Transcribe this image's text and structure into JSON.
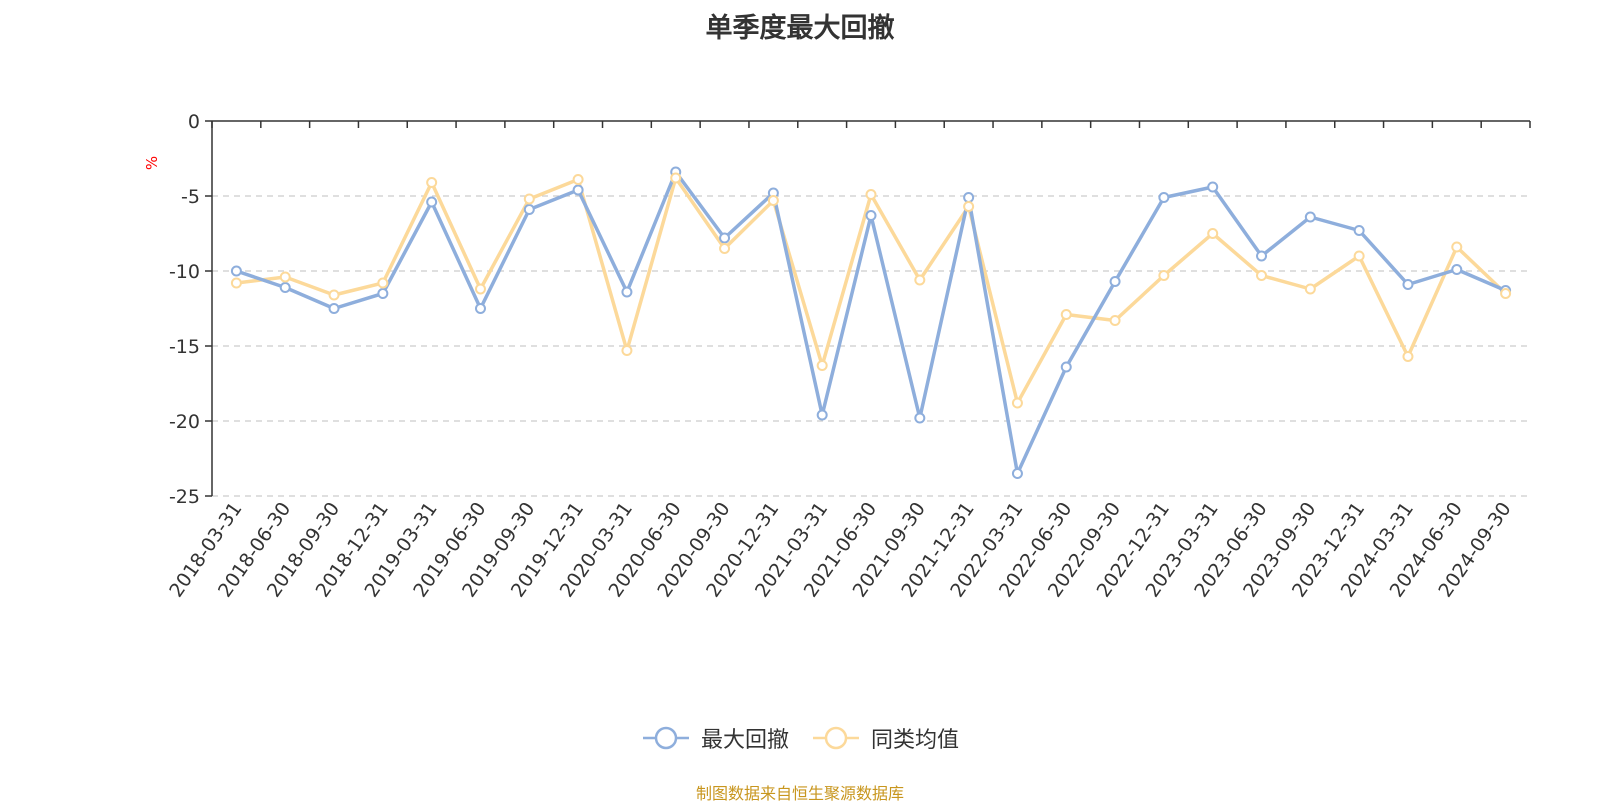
{
  "chart_data": {
    "type": "line",
    "title": "单季度最大回撤",
    "ylabel": "%",
    "xlabel": "",
    "ylim": [
      -25,
      0
    ],
    "yticks": [
      0,
      -5,
      -10,
      -15,
      -20,
      -25
    ],
    "grid": true,
    "legend_position": "bottom-center",
    "categories": [
      "2018-03-31",
      "2018-06-30",
      "2018-09-30",
      "2018-12-31",
      "2019-03-31",
      "2019-06-30",
      "2019-09-30",
      "2019-12-31",
      "2020-03-31",
      "2020-06-30",
      "2020-09-30",
      "2020-12-31",
      "2021-03-31",
      "2021-06-30",
      "2021-09-30",
      "2021-12-31",
      "2022-03-31",
      "2022-06-30",
      "2022-09-30",
      "2022-12-31",
      "2023-03-31",
      "2023-06-30",
      "2023-09-30",
      "2023-12-31",
      "2024-03-31",
      "2024-06-30",
      "2024-09-30"
    ],
    "series": [
      {
        "name": "最大回撤",
        "color": "#8eaedc",
        "values": [
          -10.0,
          -11.1,
          -12.5,
          -11.5,
          -5.4,
          -12.5,
          -5.9,
          -4.6,
          -11.4,
          -3.4,
          -7.8,
          -4.8,
          -19.6,
          -6.3,
          -19.8,
          -5.1,
          -23.5,
          -16.4,
          -10.7,
          -5.1,
          -4.4,
          -9.0,
          -6.4,
          -7.3,
          -10.9,
          -9.9,
          -11.3
        ]
      },
      {
        "name": "同类均值",
        "color": "#fcd99a",
        "values": [
          -10.8,
          -10.4,
          -11.6,
          -10.8,
          -4.1,
          -11.2,
          -5.2,
          -3.9,
          -15.3,
          -3.8,
          -8.5,
          -5.3,
          -16.3,
          -4.9,
          -10.6,
          -5.7,
          -18.8,
          -12.9,
          -13.3,
          -10.3,
          -7.5,
          -10.3,
          -11.2,
          -9.0,
          -15.7,
          -8.4,
          -11.5
        ]
      }
    ]
  },
  "source_note": "制图数据来自恒生聚源数据库"
}
